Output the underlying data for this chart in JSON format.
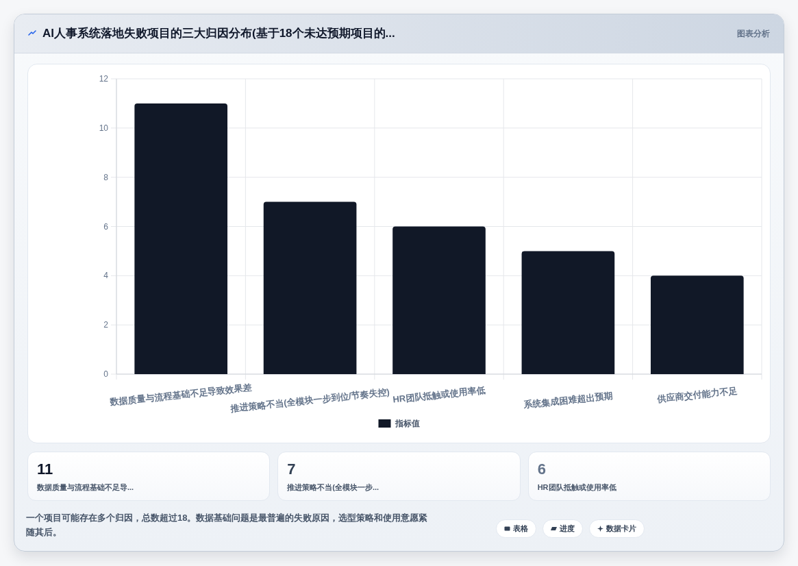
{
  "chart_data": [
    {
      "type": "bar",
      "title": "AI人事系统落地失败项目的三大归因分布(基于18个未达预期项目的...",
      "annotations": [
        "图表分析"
      ],
      "categories": [
        "数据质量与流程基础不足导致效果差",
        "推进策略不当(全模块一步到位/节奏失控)",
        "HR团队抵触或使用率低",
        "系统集成困难超出预期",
        "供应商交付能力不足"
      ],
      "series": [
        {
          "name": "指标值",
          "color": "#111827",
          "values": [
            11,
            7,
            6,
            5,
            4
          ]
        }
      ],
      "ylim": [
        0,
        12
      ],
      "yticks": [
        0,
        2,
        4,
        6,
        8,
        10,
        12
      ],
      "grid": true,
      "legend": "bottom"
    },
    {
      "type": "other",
      "categories": [
        "数据质量与流程基础不足导...",
        "推进策略不当(全模块一步...",
        "HR团队抵触或使用率低"
      ],
      "values": [
        11,
        7,
        6
      ],
      "data_labels": true,
      "annotations": [
        "一个项目可能存在多个归因，总数超过18。数据基础问题是最普遍的失败原因，选型策略和使用意愿紧随其后。",
        "表格",
        "进度",
        "数据卡片"
      ]
    }
  ]
}
